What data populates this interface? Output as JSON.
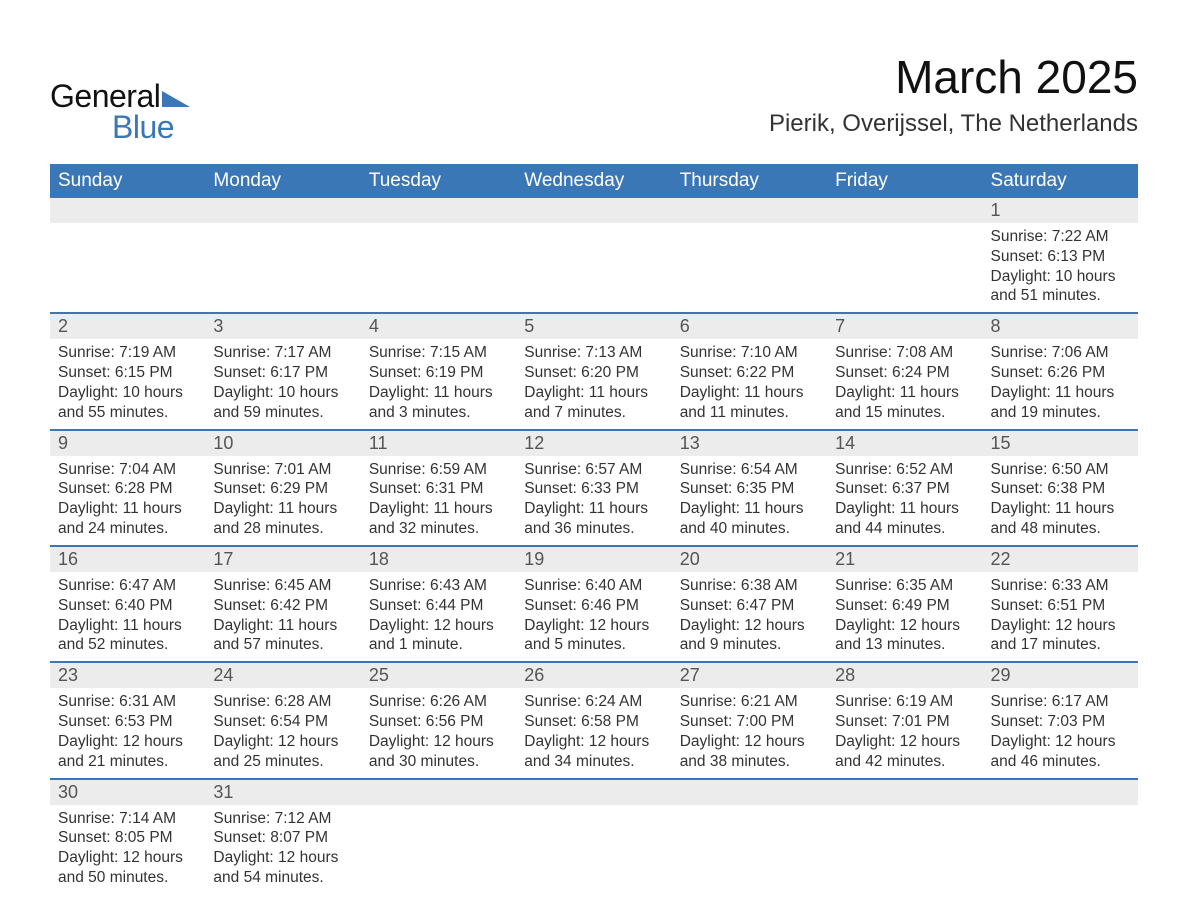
{
  "logo": {
    "text1": "General",
    "text2": "Blue",
    "triangle_color": "#3a77b7"
  },
  "header": {
    "title": "March 2025",
    "subtitle": "Pierik, Overijssel, The Netherlands"
  },
  "colors": {
    "header_bg": "#3a77b7",
    "header_fg": "#ffffff",
    "row_divider": "#3a77b7",
    "daynum_bg": "#ececec",
    "text": "#333333"
  },
  "day_names": [
    "Sunday",
    "Monday",
    "Tuesday",
    "Wednesday",
    "Thursday",
    "Friday",
    "Saturday"
  ],
  "weeks": [
    [
      null,
      null,
      null,
      null,
      null,
      null,
      {
        "n": "1",
        "sunrise": "Sunrise: 7:22 AM",
        "sunset": "Sunset: 6:13 PM",
        "daylight": "Daylight: 10 hours and 51 minutes."
      }
    ],
    [
      {
        "n": "2",
        "sunrise": "Sunrise: 7:19 AM",
        "sunset": "Sunset: 6:15 PM",
        "daylight": "Daylight: 10 hours and 55 minutes."
      },
      {
        "n": "3",
        "sunrise": "Sunrise: 7:17 AM",
        "sunset": "Sunset: 6:17 PM",
        "daylight": "Daylight: 10 hours and 59 minutes."
      },
      {
        "n": "4",
        "sunrise": "Sunrise: 7:15 AM",
        "sunset": "Sunset: 6:19 PM",
        "daylight": "Daylight: 11 hours and 3 minutes."
      },
      {
        "n": "5",
        "sunrise": "Sunrise: 7:13 AM",
        "sunset": "Sunset: 6:20 PM",
        "daylight": "Daylight: 11 hours and 7 minutes."
      },
      {
        "n": "6",
        "sunrise": "Sunrise: 7:10 AM",
        "sunset": "Sunset: 6:22 PM",
        "daylight": "Daylight: 11 hours and 11 minutes."
      },
      {
        "n": "7",
        "sunrise": "Sunrise: 7:08 AM",
        "sunset": "Sunset: 6:24 PM",
        "daylight": "Daylight: 11 hours and 15 minutes."
      },
      {
        "n": "8",
        "sunrise": "Sunrise: 7:06 AM",
        "sunset": "Sunset: 6:26 PM",
        "daylight": "Daylight: 11 hours and 19 minutes."
      }
    ],
    [
      {
        "n": "9",
        "sunrise": "Sunrise: 7:04 AM",
        "sunset": "Sunset: 6:28 PM",
        "daylight": "Daylight: 11 hours and 24 minutes."
      },
      {
        "n": "10",
        "sunrise": "Sunrise: 7:01 AM",
        "sunset": "Sunset: 6:29 PM",
        "daylight": "Daylight: 11 hours and 28 minutes."
      },
      {
        "n": "11",
        "sunrise": "Sunrise: 6:59 AM",
        "sunset": "Sunset: 6:31 PM",
        "daylight": "Daylight: 11 hours and 32 minutes."
      },
      {
        "n": "12",
        "sunrise": "Sunrise: 6:57 AM",
        "sunset": "Sunset: 6:33 PM",
        "daylight": "Daylight: 11 hours and 36 minutes."
      },
      {
        "n": "13",
        "sunrise": "Sunrise: 6:54 AM",
        "sunset": "Sunset: 6:35 PM",
        "daylight": "Daylight: 11 hours and 40 minutes."
      },
      {
        "n": "14",
        "sunrise": "Sunrise: 6:52 AM",
        "sunset": "Sunset: 6:37 PM",
        "daylight": "Daylight: 11 hours and 44 minutes."
      },
      {
        "n": "15",
        "sunrise": "Sunrise: 6:50 AM",
        "sunset": "Sunset: 6:38 PM",
        "daylight": "Daylight: 11 hours and 48 minutes."
      }
    ],
    [
      {
        "n": "16",
        "sunrise": "Sunrise: 6:47 AM",
        "sunset": "Sunset: 6:40 PM",
        "daylight": "Daylight: 11 hours and 52 minutes."
      },
      {
        "n": "17",
        "sunrise": "Sunrise: 6:45 AM",
        "sunset": "Sunset: 6:42 PM",
        "daylight": "Daylight: 11 hours and 57 minutes."
      },
      {
        "n": "18",
        "sunrise": "Sunrise: 6:43 AM",
        "sunset": "Sunset: 6:44 PM",
        "daylight": "Daylight: 12 hours and 1 minute."
      },
      {
        "n": "19",
        "sunrise": "Sunrise: 6:40 AM",
        "sunset": "Sunset: 6:46 PM",
        "daylight": "Daylight: 12 hours and 5 minutes."
      },
      {
        "n": "20",
        "sunrise": "Sunrise: 6:38 AM",
        "sunset": "Sunset: 6:47 PM",
        "daylight": "Daylight: 12 hours and 9 minutes."
      },
      {
        "n": "21",
        "sunrise": "Sunrise: 6:35 AM",
        "sunset": "Sunset: 6:49 PM",
        "daylight": "Daylight: 12 hours and 13 minutes."
      },
      {
        "n": "22",
        "sunrise": "Sunrise: 6:33 AM",
        "sunset": "Sunset: 6:51 PM",
        "daylight": "Daylight: 12 hours and 17 minutes."
      }
    ],
    [
      {
        "n": "23",
        "sunrise": "Sunrise: 6:31 AM",
        "sunset": "Sunset: 6:53 PM",
        "daylight": "Daylight: 12 hours and 21 minutes."
      },
      {
        "n": "24",
        "sunrise": "Sunrise: 6:28 AM",
        "sunset": "Sunset: 6:54 PM",
        "daylight": "Daylight: 12 hours and 25 minutes."
      },
      {
        "n": "25",
        "sunrise": "Sunrise: 6:26 AM",
        "sunset": "Sunset: 6:56 PM",
        "daylight": "Daylight: 12 hours and 30 minutes."
      },
      {
        "n": "26",
        "sunrise": "Sunrise: 6:24 AM",
        "sunset": "Sunset: 6:58 PM",
        "daylight": "Daylight: 12 hours and 34 minutes."
      },
      {
        "n": "27",
        "sunrise": "Sunrise: 6:21 AM",
        "sunset": "Sunset: 7:00 PM",
        "daylight": "Daylight: 12 hours and 38 minutes."
      },
      {
        "n": "28",
        "sunrise": "Sunrise: 6:19 AM",
        "sunset": "Sunset: 7:01 PM",
        "daylight": "Daylight: 12 hours and 42 minutes."
      },
      {
        "n": "29",
        "sunrise": "Sunrise: 6:17 AM",
        "sunset": "Sunset: 7:03 PM",
        "daylight": "Daylight: 12 hours and 46 minutes."
      }
    ],
    [
      {
        "n": "30",
        "sunrise": "Sunrise: 7:14 AM",
        "sunset": "Sunset: 8:05 PM",
        "daylight": "Daylight: 12 hours and 50 minutes."
      },
      {
        "n": "31",
        "sunrise": "Sunrise: 7:12 AM",
        "sunset": "Sunset: 8:07 PM",
        "daylight": "Daylight: 12 hours and 54 minutes."
      },
      null,
      null,
      null,
      null,
      null
    ]
  ]
}
